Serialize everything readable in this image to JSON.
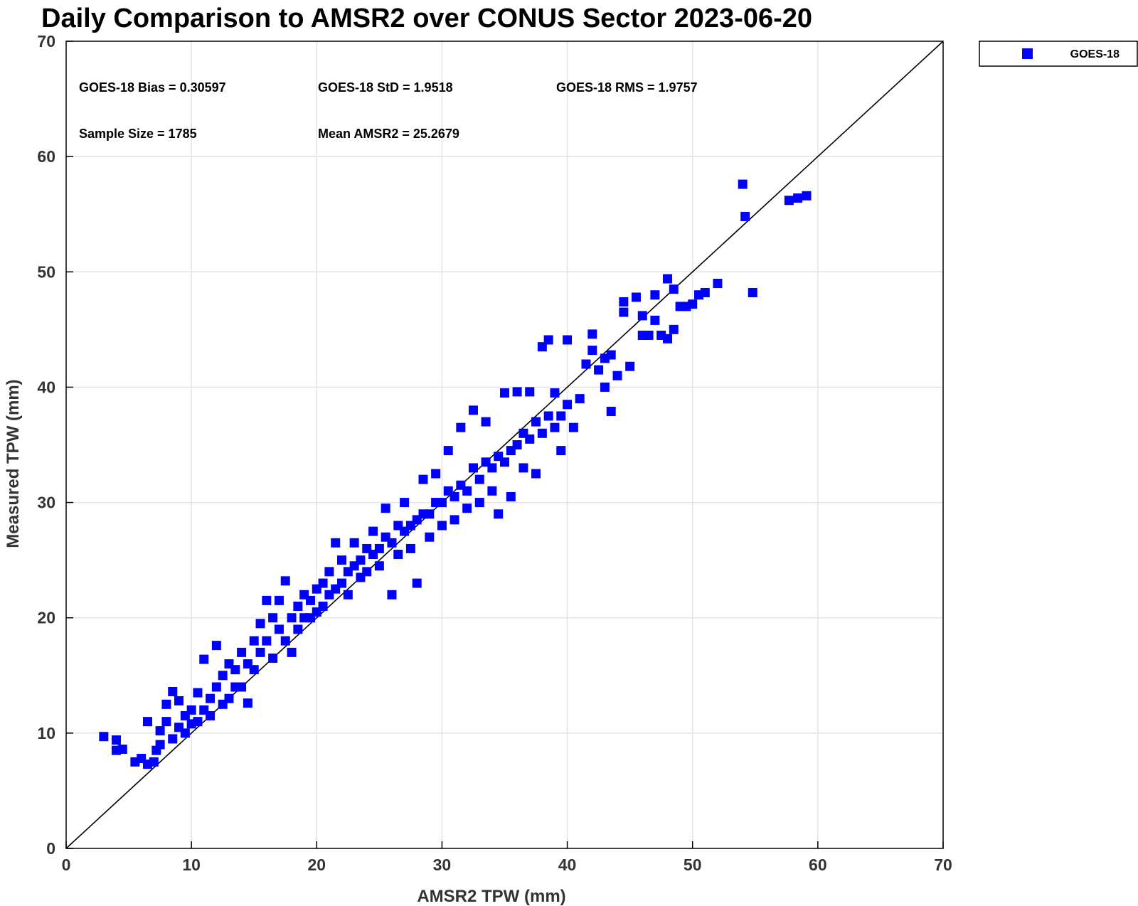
{
  "chart_data": {
    "type": "scatter",
    "title": "Daily Comparison to AMSR2 over CONUS Sector 2023-06-20",
    "xlabel": "AMSR2 TPW (mm)",
    "ylabel": "Measured TPW (mm)",
    "xlim": [
      0,
      70
    ],
    "ylim": [
      0,
      70
    ],
    "xticks": [
      "0",
      "10",
      "20",
      "30",
      "40",
      "50",
      "60",
      "70"
    ],
    "yticks": [
      "0",
      "10",
      "20",
      "30",
      "40",
      "50",
      "60",
      "70"
    ],
    "grid": true,
    "legend_position": "top-right, outside plot",
    "reference_line": "1:1",
    "stats": {
      "bias": "GOES-18 Bias = 0.30597",
      "std": "GOES-18 StD = 1.9518",
      "rms": "GOES-18 RMS = 1.9757",
      "sample_size": "Sample Size = 1785",
      "mean": "Mean AMSR2 = 25.2679"
    },
    "series": [
      {
        "name": "GOES-18",
        "color": "#0000ff",
        "marker": "square",
        "points": [
          [
            3.0,
            9.7
          ],
          [
            4.0,
            9.4
          ],
          [
            4.0,
            8.5
          ],
          [
            4.5,
            8.6
          ],
          [
            5.5,
            7.5
          ],
          [
            6.0,
            7.8
          ],
          [
            6.5,
            7.3
          ],
          [
            6.5,
            11.0
          ],
          [
            7.0,
            7.5
          ],
          [
            7.2,
            8.5
          ],
          [
            7.5,
            9.0
          ],
          [
            7.5,
            10.2
          ],
          [
            8.0,
            11.0
          ],
          [
            8.0,
            12.5
          ],
          [
            8.5,
            13.6
          ],
          [
            8.5,
            9.5
          ],
          [
            9.0,
            10.5
          ],
          [
            9.0,
            12.8
          ],
          [
            9.5,
            10.0
          ],
          [
            9.5,
            11.5
          ],
          [
            10.0,
            10.8
          ],
          [
            10.0,
            12.0
          ],
          [
            10.5,
            13.5
          ],
          [
            10.5,
            11.0
          ],
          [
            11.0,
            16.4
          ],
          [
            11.0,
            12.0
          ],
          [
            11.5,
            13.0
          ],
          [
            11.5,
            11.5
          ],
          [
            12.0,
            17.6
          ],
          [
            12.0,
            14.0
          ],
          [
            12.5,
            12.5
          ],
          [
            12.5,
            15.0
          ],
          [
            13.0,
            13.0
          ],
          [
            13.0,
            16.0
          ],
          [
            13.5,
            14.0
          ],
          [
            13.5,
            15.5
          ],
          [
            14.0,
            17.0
          ],
          [
            14.0,
            14.0
          ],
          [
            14.5,
            12.6
          ],
          [
            14.5,
            16.0
          ],
          [
            15.0,
            18.0
          ],
          [
            15.0,
            15.5
          ],
          [
            15.5,
            17.0
          ],
          [
            15.5,
            19.5
          ],
          [
            16.0,
            21.5
          ],
          [
            16.0,
            18.0
          ],
          [
            16.5,
            20.0
          ],
          [
            16.5,
            16.5
          ],
          [
            17.0,
            19.0
          ],
          [
            17.0,
            21.5
          ],
          [
            17.5,
            18.0
          ],
          [
            17.5,
            23.2
          ],
          [
            18.0,
            20.0
          ],
          [
            18.0,
            17.0
          ],
          [
            18.5,
            21.0
          ],
          [
            18.5,
            19.0
          ],
          [
            19.0,
            20.0
          ],
          [
            19.0,
            22.0
          ],
          [
            19.5,
            21.5
          ],
          [
            19.5,
            20.0
          ],
          [
            20.0,
            22.5
          ],
          [
            20.0,
            20.5
          ],
          [
            20.5,
            21.0
          ],
          [
            20.5,
            23.0
          ],
          [
            21.0,
            22.0
          ],
          [
            21.0,
            24.0
          ],
          [
            21.5,
            22.5
          ],
          [
            21.5,
            26.5
          ],
          [
            22.0,
            23.0
          ],
          [
            22.0,
            25.0
          ],
          [
            22.5,
            24.0
          ],
          [
            22.5,
            22.0
          ],
          [
            23.0,
            24.5
          ],
          [
            23.0,
            26.5
          ],
          [
            23.5,
            25.0
          ],
          [
            23.5,
            23.5
          ],
          [
            24.0,
            26.0
          ],
          [
            24.0,
            24.0
          ],
          [
            24.5,
            25.5
          ],
          [
            24.5,
            27.5
          ],
          [
            25.0,
            26.0
          ],
          [
            25.0,
            24.5
          ],
          [
            25.5,
            27.0
          ],
          [
            25.5,
            29.5
          ],
          [
            26.0,
            26.5
          ],
          [
            26.0,
            22.0
          ],
          [
            26.5,
            28.0
          ],
          [
            26.5,
            25.5
          ],
          [
            27.0,
            27.5
          ],
          [
            27.0,
            30.0
          ],
          [
            27.5,
            28.0
          ],
          [
            27.5,
            26.0
          ],
          [
            28.0,
            28.5
          ],
          [
            28.0,
            23.0
          ],
          [
            28.5,
            29.0
          ],
          [
            28.5,
            32.0
          ],
          [
            29.0,
            29.0
          ],
          [
            29.0,
            27.0
          ],
          [
            29.5,
            30.0
          ],
          [
            29.5,
            32.5
          ],
          [
            30.0,
            30.0
          ],
          [
            30.0,
            28.0
          ],
          [
            30.5,
            31.0
          ],
          [
            30.5,
            34.5
          ],
          [
            31.0,
            30.5
          ],
          [
            31.0,
            28.5
          ],
          [
            31.5,
            31.5
          ],
          [
            31.5,
            36.5
          ],
          [
            32.0,
            31.0
          ],
          [
            32.0,
            29.5
          ],
          [
            32.5,
            33.0
          ],
          [
            32.5,
            38.0
          ],
          [
            33.0,
            32.0
          ],
          [
            33.0,
            30.0
          ],
          [
            33.5,
            33.5
          ],
          [
            33.5,
            37.0
          ],
          [
            34.0,
            33.0
          ],
          [
            34.0,
            31.0
          ],
          [
            34.5,
            34.0
          ],
          [
            34.5,
            29.0
          ],
          [
            35.0,
            33.5
          ],
          [
            35.0,
            39.5
          ],
          [
            35.5,
            34.5
          ],
          [
            35.5,
            30.5
          ],
          [
            36.0,
            35.0
          ],
          [
            36.0,
            39.6
          ],
          [
            36.5,
            36.0
          ],
          [
            36.5,
            33.0
          ],
          [
            37.0,
            35.5
          ],
          [
            37.0,
            39.6
          ],
          [
            37.5,
            37.0
          ],
          [
            37.5,
            32.5
          ],
          [
            38.0,
            36.0
          ],
          [
            38.0,
            43.5
          ],
          [
            38.5,
            37.5
          ],
          [
            38.5,
            44.1
          ],
          [
            39.0,
            36.5
          ],
          [
            39.0,
            39.5
          ],
          [
            39.5,
            37.5
          ],
          [
            39.5,
            34.5
          ],
          [
            40.0,
            38.5
          ],
          [
            40.0,
            44.1
          ],
          [
            40.5,
            36.5
          ],
          [
            41.0,
            39.0
          ],
          [
            41.5,
            42.0
          ],
          [
            42.0,
            44.6
          ],
          [
            42.0,
            43.2
          ],
          [
            42.5,
            41.5
          ],
          [
            43.0,
            42.5
          ],
          [
            43.0,
            40.0
          ],
          [
            43.5,
            37.9
          ],
          [
            43.5,
            42.8
          ],
          [
            44.0,
            41.0
          ],
          [
            44.5,
            47.4
          ],
          [
            44.5,
            46.5
          ],
          [
            45.0,
            41.8
          ],
          [
            45.5,
            47.8
          ],
          [
            46.0,
            46.2
          ],
          [
            46.0,
            44.5
          ],
          [
            46.5,
            44.5
          ],
          [
            47.0,
            45.8
          ],
          [
            47.0,
            48.0
          ],
          [
            47.5,
            44.5
          ],
          [
            48.0,
            49.4
          ],
          [
            48.0,
            44.2
          ],
          [
            48.5,
            48.5
          ],
          [
            48.5,
            45.0
          ],
          [
            49.0,
            47.0
          ],
          [
            49.5,
            47.0
          ],
          [
            50.0,
            47.2
          ],
          [
            50.5,
            48.0
          ],
          [
            51.0,
            48.2
          ],
          [
            52.0,
            49.0
          ],
          [
            54.0,
            57.6
          ],
          [
            54.2,
            54.8
          ],
          [
            54.8,
            48.2
          ],
          [
            57.7,
            56.2
          ],
          [
            58.4,
            56.4
          ],
          [
            59.1,
            56.6
          ]
        ]
      }
    ]
  }
}
